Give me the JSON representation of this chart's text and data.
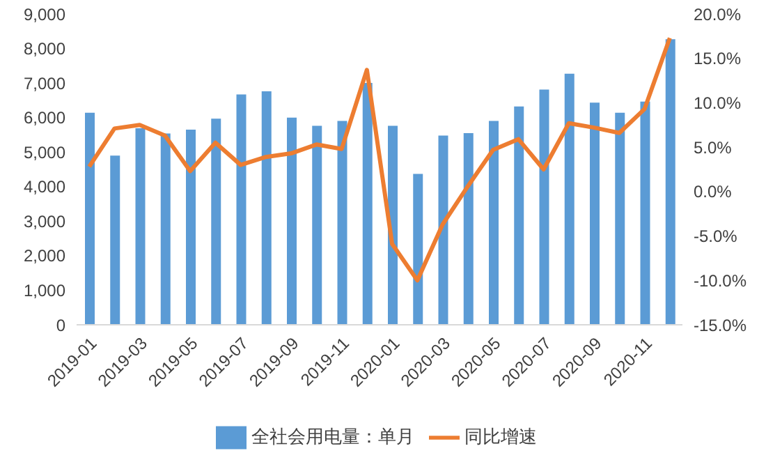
{
  "chart_data": {
    "type": "bar",
    "categories": [
      "2019-01",
      null,
      "2019-03",
      null,
      "2019-05",
      null,
      "2019-07",
      null,
      "2019-09",
      null,
      "2019-11",
      null,
      "2020-01",
      null,
      "2020-03",
      null,
      "2020-05",
      null,
      "2020-07",
      null,
      "2020-09",
      null,
      "2020-11",
      null
    ],
    "series": [
      {
        "name": "全社会用电量：单月",
        "color": "#5b9bd5",
        "values": [
          6140,
          4900,
          5690,
          5540,
          5650,
          5970,
          6670,
          6760,
          6000,
          5760,
          5900,
          7000,
          5760,
          4370,
          5480,
          5550,
          5900,
          6320,
          6810,
          7270,
          6430,
          6140,
          6460,
          8270
        ]
      },
      {
        "name": "同比增速",
        "type": "line",
        "axis": "y2",
        "color": "#ed7d31",
        "values": [
          2.8,
          7.1,
          7.5,
          6.3,
          2.3,
          5.5,
          3.0,
          3.9,
          4.3,
          5.3,
          4.8,
          13.7,
          -5.9,
          -10.0,
          -3.7,
          0.6,
          4.7,
          5.9,
          2.5,
          7.7,
          7.2,
          6.6,
          9.3,
          17.3
        ]
      }
    ],
    "ylim": [
      0,
      9000
    ],
    "yticks": [
      0,
      {
        "value": 1000,
        "label": "1,000"
      },
      {
        "value": 2000,
        "label": "2,000"
      },
      {
        "value": 3000,
        "label": "3,000"
      },
      {
        "value": 4000,
        "label": "4,000"
      },
      {
        "value": 5000,
        "label": "5,000"
      },
      {
        "value": 6000,
        "label": "6,000"
      },
      {
        "value": 7000,
        "label": "7,000"
      },
      {
        "value": 8000,
        "label": "8,000"
      },
      {
        "value": 9000,
        "label": "9,000"
      }
    ],
    "y2lim": [
      -15,
      20
    ],
    "y2ticks": [
      {
        "value": -15,
        "label": "-15.0%"
      },
      {
        "value": -10,
        "label": "-10.0%"
      },
      {
        "value": -5,
        "label": "-5.0%"
      },
      {
        "value": 0,
        "label": "0.0%"
      },
      {
        "value": 5,
        "label": "5.0%"
      },
      {
        "value": 10,
        "label": "10.0%"
      },
      {
        "value": 15,
        "label": "15.0%"
      },
      {
        "value": 20,
        "label": "20.0%"
      }
    ],
    "legend": "bottom",
    "marker": "none"
  }
}
